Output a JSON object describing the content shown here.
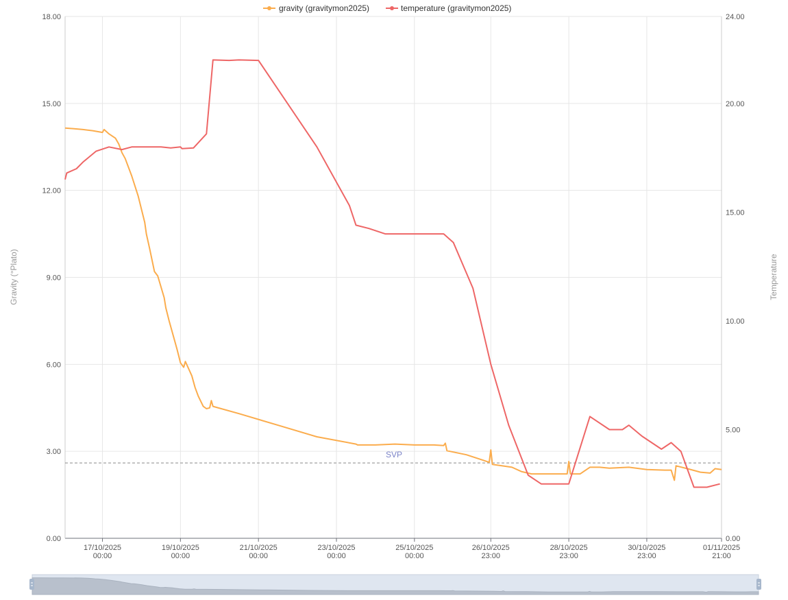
{
  "chart_data": {
    "type": "line",
    "title": "",
    "legend": {
      "position": "top-center",
      "items": [
        {
          "name": "gravity  (gravitymon2025)",
          "color": "#fbac4c"
        },
        {
          "name": "temperature  (gravitymon2025)",
          "color": "#ee6666"
        }
      ]
    },
    "grid": true,
    "y_left": {
      "label": "Gravity (°Plato)",
      "min": 0,
      "max": 18,
      "ticks": [
        "0.00",
        "3.00",
        "6.00",
        "9.00",
        "12.00",
        "15.00",
        "18.00"
      ]
    },
    "y_right": {
      "label": "Temperature",
      "min": 0,
      "max": 24,
      "ticks": [
        "0.00",
        "5.00",
        "10.00",
        "15.00",
        "20.00",
        "24.00"
      ]
    },
    "x_axis": {
      "start": "2025-10-16 01:00",
      "end": "2025-11-01 21:00",
      "ticks": [
        {
          "at": "2025-10-17 00:00",
          "line1": "17/10/2025",
          "line2": "00:00"
        },
        {
          "at": "2025-10-19 00:00",
          "line1": "19/10/2025",
          "line2": "00:00"
        },
        {
          "at": "2025-10-21 00:00",
          "line1": "21/10/2025",
          "line2": "00:00"
        },
        {
          "at": "2025-10-23 00:00",
          "line1": "23/10/2025",
          "line2": "00:00"
        },
        {
          "at": "2025-10-25 00:00",
          "line1": "25/10/2025",
          "line2": "00:00"
        },
        {
          "at": "2025-10-26 23:00",
          "line1": "26/10/2025",
          "line2": "23:00"
        },
        {
          "at": "2025-10-28 23:00",
          "line1": "28/10/2025",
          "line2": "23:00"
        },
        {
          "at": "2025-10-30 23:00",
          "line1": "30/10/2025",
          "line2": "23:00"
        },
        {
          "at": "2025-11-01 21:00",
          "line1": "01/11/2025",
          "line2": "21:00"
        }
      ]
    },
    "mark_line": {
      "label": "SVP",
      "value": 2.6,
      "axis": "left"
    },
    "series": [
      {
        "name": "gravity  (gravitymon2025)",
        "axis": "left",
        "color": "#fbac4c",
        "points": [
          [
            "2025-10-16 01:00",
            14.15
          ],
          [
            "2025-10-16 06:00",
            14.13
          ],
          [
            "2025-10-16 12:00",
            14.1
          ],
          [
            "2025-10-16 18:00",
            14.06
          ],
          [
            "2025-10-17 00:00",
            14.0
          ],
          [
            "2025-10-17 01:00",
            14.1
          ],
          [
            "2025-10-17 04:00",
            13.95
          ],
          [
            "2025-10-17 08:00",
            13.8
          ],
          [
            "2025-10-17 10:00",
            13.6
          ],
          [
            "2025-10-17 12:00",
            13.3
          ],
          [
            "2025-10-17 14:00",
            13.1
          ],
          [
            "2025-10-17 18:00",
            12.5
          ],
          [
            "2025-10-17 22:00",
            11.8
          ],
          [
            "2025-10-18 02:00",
            10.9
          ],
          [
            "2025-10-18 03:00",
            10.5
          ],
          [
            "2025-10-18 05:00",
            10.0
          ],
          [
            "2025-10-18 08:00",
            9.2
          ],
          [
            "2025-10-18 10:00",
            9.05
          ],
          [
            "2025-10-18 14:00",
            8.3
          ],
          [
            "2025-10-18 15:00",
            7.95
          ],
          [
            "2025-10-18 17:00",
            7.5
          ],
          [
            "2025-10-18 20:00",
            6.9
          ],
          [
            "2025-10-18 22:00",
            6.5
          ],
          [
            "2025-10-19 00:00",
            6.05
          ],
          [
            "2025-10-19 02:00",
            5.9
          ],
          [
            "2025-10-19 03:00",
            6.1
          ],
          [
            "2025-10-19 07:00",
            5.6
          ],
          [
            "2025-10-19 09:00",
            5.2
          ],
          [
            "2025-10-19 11:00",
            4.9
          ],
          [
            "2025-10-19 14:00",
            4.55
          ],
          [
            "2025-10-19 16:00",
            4.47
          ],
          [
            "2025-10-19 18:00",
            4.5
          ],
          [
            "2025-10-19 19:00",
            4.75
          ],
          [
            "2025-10-19 20:00",
            4.55
          ],
          [
            "2025-10-20 12:00",
            4.3
          ],
          [
            "2025-10-21 12:00",
            3.9
          ],
          [
            "2025-10-22 12:00",
            3.5
          ],
          [
            "2025-10-23 12:00",
            3.25
          ],
          [
            "2025-10-23 13:00",
            3.22
          ],
          [
            "2025-10-24 00:00",
            3.22
          ],
          [
            "2025-10-24 12:00",
            3.25
          ],
          [
            "2025-10-25 00:00",
            3.22
          ],
          [
            "2025-10-25 12:00",
            3.22
          ],
          [
            "2025-10-25 18:00",
            3.2
          ],
          [
            "2025-10-25 19:00",
            3.28
          ],
          [
            "2025-10-25 20:00",
            3.02
          ],
          [
            "2025-10-26 08:00",
            2.88
          ],
          [
            "2025-10-26 18:00",
            2.7
          ],
          [
            "2025-10-26 22:00",
            2.62
          ],
          [
            "2025-10-26 23:00",
            3.05
          ],
          [
            "2025-10-27 00:00",
            2.55
          ],
          [
            "2025-10-27 12:00",
            2.45
          ],
          [
            "2025-10-27 18:00",
            2.3
          ],
          [
            "2025-10-28 00:00",
            2.22
          ],
          [
            "2025-10-28 12:00",
            2.22
          ],
          [
            "2025-10-28 22:00",
            2.22
          ],
          [
            "2025-10-28 23:00",
            2.65
          ],
          [
            "2025-10-29 00:00",
            2.22
          ],
          [
            "2025-10-29 06:00",
            2.22
          ],
          [
            "2025-10-29 12:00",
            2.45
          ],
          [
            "2025-10-29 18:00",
            2.45
          ],
          [
            "2025-10-30 00:00",
            2.42
          ],
          [
            "2025-10-30 12:00",
            2.45
          ],
          [
            "2025-10-30 23:00",
            2.37
          ],
          [
            "2025-10-31 10:00",
            2.35
          ],
          [
            "2025-10-31 14:00",
            2.35
          ],
          [
            "2025-10-31 16:00",
            2.0
          ],
          [
            "2025-10-31 17:00",
            2.5
          ],
          [
            "2025-11-01 00:00",
            2.4
          ],
          [
            "2025-11-01 08:00",
            2.28
          ],
          [
            "2025-11-01 14:00",
            2.25
          ],
          [
            "2025-11-01 17:00",
            2.4
          ],
          [
            "2025-11-01 21:00",
            2.37
          ]
        ]
      },
      {
        "name": "temperature  (gravitymon2025)",
        "axis": "right",
        "color": "#ee6666",
        "points": [
          [
            "2025-10-16 01:00",
            16.5
          ],
          [
            "2025-10-16 02:00",
            16.8
          ],
          [
            "2025-10-16 08:00",
            17.0
          ],
          [
            "2025-10-16 12:00",
            17.3
          ],
          [
            "2025-10-16 20:00",
            17.8
          ],
          [
            "2025-10-17 04:00",
            18.0
          ],
          [
            "2025-10-17 12:00",
            17.88
          ],
          [
            "2025-10-17 18:00",
            18.0
          ],
          [
            "2025-10-18 00:00",
            18.0
          ],
          [
            "2025-10-18 12:00",
            18.0
          ],
          [
            "2025-10-18 18:00",
            17.95
          ],
          [
            "2025-10-19 00:00",
            18.0
          ],
          [
            "2025-10-19 01:00",
            17.92
          ],
          [
            "2025-10-19 08:00",
            17.95
          ],
          [
            "2025-10-19 16:00",
            18.6
          ],
          [
            "2025-10-19 20:00",
            22.0
          ],
          [
            "2025-10-20 06:00",
            21.98
          ],
          [
            "2025-10-20 12:00",
            22.0
          ],
          [
            "2025-10-21 00:00",
            21.98
          ],
          [
            "2025-10-22 12:00",
            18.0
          ],
          [
            "2025-10-23 08:00",
            15.3
          ],
          [
            "2025-10-23 12:00",
            14.4
          ],
          [
            "2025-10-23 20:00",
            14.25
          ],
          [
            "2025-10-24 06:00",
            14.0
          ],
          [
            "2025-10-25 12:00",
            14.0
          ],
          [
            "2025-10-25 18:00",
            14.0
          ],
          [
            "2025-10-26 00:00",
            13.6
          ],
          [
            "2025-10-26 12:00",
            11.5
          ],
          [
            "2025-10-26 23:00",
            8.0
          ],
          [
            "2025-10-27 10:00",
            5.2
          ],
          [
            "2025-10-27 22:00",
            2.9
          ],
          [
            "2025-10-28 06:00",
            2.5
          ],
          [
            "2025-10-28 23:00",
            2.5
          ],
          [
            "2025-10-29 12:00",
            5.6
          ],
          [
            "2025-10-30 00:00",
            5.0
          ],
          [
            "2025-10-30 08:00",
            5.0
          ],
          [
            "2025-10-30 12:00",
            5.2
          ],
          [
            "2025-10-30 20:00",
            4.7
          ],
          [
            "2025-10-31 08:00",
            4.1
          ],
          [
            "2025-10-31 14:00",
            4.4
          ],
          [
            "2025-10-31 20:00",
            4.0
          ],
          [
            "2025-11-01 04:00",
            2.35
          ],
          [
            "2025-11-01 12:00",
            2.35
          ],
          [
            "2025-11-01 20:00",
            2.5
          ]
        ]
      }
    ]
  }
}
